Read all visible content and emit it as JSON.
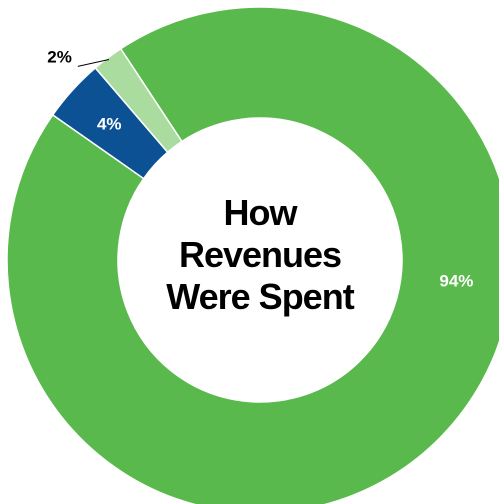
{
  "chart_data": {
    "type": "pie",
    "variant": "donut",
    "title_lines": [
      "How",
      "Revenues",
      "Were Spent"
    ],
    "categories": [
      "",
      "",
      ""
    ],
    "values": [
      94,
      4,
      2
    ],
    "labels": [
      "94%",
      "4%",
      "2%"
    ],
    "colors": [
      "#5ab94c",
      "#0b5194",
      "#aadc9f"
    ],
    "label_colors": [
      "#ffffff",
      "#ffffff",
      "#000000"
    ],
    "legend": "none"
  }
}
